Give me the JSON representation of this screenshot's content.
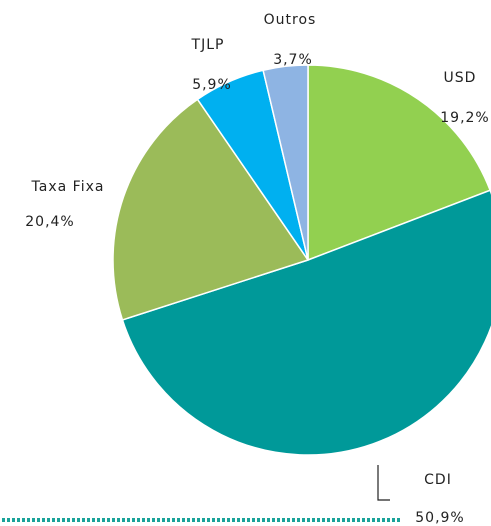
{
  "chart_data": {
    "type": "pie",
    "categories": [
      "USD",
      "CDI",
      "Taxa Fixa",
      "TJLP",
      "Outros"
    ],
    "values": [
      19.2,
      50.9,
      20.4,
      5.9,
      3.7
    ],
    "value_labels": [
      "19,2%",
      "50,9%",
      "20,4%",
      "5,9%",
      "3,7%"
    ],
    "colors": [
      "#92d050",
      "#009999",
      "#9bbb59",
      "#00b0f0",
      "#8eb4e3"
    ]
  }
}
